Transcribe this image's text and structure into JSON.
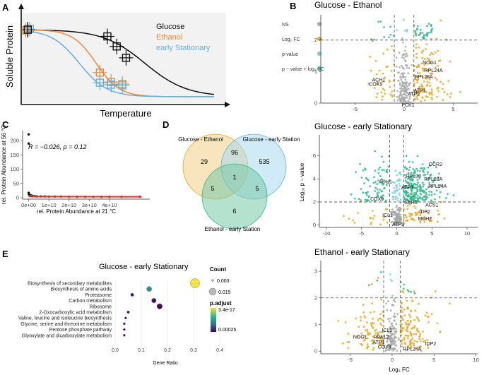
{
  "colors": {
    "glucose": "#111111",
    "ethanol": "#e88a3a",
    "stationary": "#6aaed6",
    "ns": "#a8a8a8",
    "log2fc": "#e3a72a",
    "pvalue": "#76cde0",
    "both": "#35b58e",
    "venn_glucose_ethanol": "#f3cf86",
    "venn_glucose_stationary": "#a9d8ef",
    "venn_ethanol_stationary": "#79c8a8",
    "regression": "#c0392b",
    "panel_bg": "#f2f2f2"
  },
  "panels": {
    "A": "A",
    "B": "B",
    "C": "C",
    "D": "D",
    "E": "E"
  },
  "chart_data": [
    {
      "id": "A",
      "type": "line",
      "xlabel": "Temperature",
      "ylabel": "Soluble Protein",
      "x": [
        0,
        1,
        2,
        3,
        4,
        5,
        6,
        7,
        8,
        9,
        10
      ],
      "series": [
        {
          "name": "Glucose",
          "color": "glucose",
          "values": [
            1.0,
            0.99,
            0.97,
            0.93,
            0.85,
            0.73,
            0.57,
            0.38,
            0.2,
            0.08,
            0.02
          ]
        },
        {
          "name": "Ethanol",
          "color": "ethanol",
          "values": [
            1.0,
            0.98,
            0.92,
            0.7,
            0.3,
            0.1,
            0.04,
            0.02,
            0.01,
            0.0,
            0.0
          ]
        },
        {
          "name": "early Stationary",
          "color": "stationary",
          "values": [
            1.0,
            0.93,
            0.7,
            0.35,
            0.12,
            0.05,
            0.03,
            0.02,
            0.01,
            0.0,
            0.0
          ]
        }
      ],
      "points": [
        {
          "series": "Glucose",
          "x": 0.05,
          "y": 1.0
        },
        {
          "series": "Glucose",
          "x": 4.3,
          "y": 0.9
        },
        {
          "series": "Glucose",
          "x": 4.8,
          "y": 0.75
        },
        {
          "series": "Glucose",
          "x": 5.3,
          "y": 0.58
        },
        {
          "series": "Ethanol",
          "x": 3.9,
          "y": 0.36
        },
        {
          "series": "Ethanol",
          "x": 4.5,
          "y": 0.22
        },
        {
          "series": "Ethanol",
          "x": 5.1,
          "y": 0.19
        },
        {
          "series": "early Stationary",
          "x": 3.9,
          "y": 0.21
        },
        {
          "series": "early Stationary",
          "x": 4.5,
          "y": 0.18
        },
        {
          "series": "early Stationary",
          "x": 5.1,
          "y": 0.17
        }
      ]
    },
    {
      "id": "B1",
      "type": "scatter",
      "title": "Glucose - Ethanol",
      "xlabel": "",
      "ylabel": "",
      "xlim": [
        -8.5,
        7.5
      ],
      "ylim": [
        0,
        2.8
      ],
      "xticks": [
        -5,
        0,
        5
      ],
      "yticks": [
        0,
        1,
        2
      ],
      "fc_cutoff": 1,
      "p_cutoff": 2,
      "legend": [
        {
          "label": "NS",
          "color": "ns"
        },
        {
          "label": "Log₂ FC",
          "color": "log2fc"
        },
        {
          "label": "p-value",
          "color": "pvalue"
        },
        {
          "label": "p − value + log₂ FC",
          "color": "both"
        }
      ],
      "labels": [
        {
          "text": "NOG1",
          "x": 2.6,
          "y": 1.3
        },
        {
          "text": "RPL24A",
          "x": 3.0,
          "y": 1.05
        },
        {
          "text": "RPL28A",
          "x": 2.0,
          "y": 0.85
        },
        {
          "text": "ACH1",
          "x": -2.6,
          "y": 0.75
        },
        {
          "text": "COX9",
          "x": -2.9,
          "y": 0.62
        },
        {
          "text": "ATP1",
          "x": 1.6,
          "y": 0.42
        },
        {
          "text": "ATP2",
          "x": 1.0,
          "y": 0.3
        },
        {
          "text": "PCK1",
          "x": 0.4,
          "y": -0.05
        }
      ]
    },
    {
      "id": "B2",
      "type": "scatter",
      "title": "Glucose - early Stationary",
      "xlabel": "",
      "ylabel": "Log₁₀ p − value",
      "xlim": [
        -11,
        11.5
      ],
      "ylim": [
        -0.2,
        7.8
      ],
      "xticks": [
        -10,
        -5,
        0,
        5,
        10
      ],
      "yticks": [
        0,
        2,
        4,
        6
      ],
      "fc_cutoff": 1,
      "p_cutoff": 2,
      "labels": [
        {
          "text": "OCR2",
          "x": 5.5,
          "y": 5.3
        },
        {
          "text": "RPL30",
          "x": 2.4,
          "y": 4.3
        },
        {
          "text": "RPL28A",
          "x": 5.2,
          "y": 4.0
        },
        {
          "text": "ADH1",
          "x": -1.6,
          "y": 3.8
        },
        {
          "text": "RPL24A",
          "x": 5.8,
          "y": 3.4
        },
        {
          "text": "ATP3",
          "x": 1.5,
          "y": 3.3
        },
        {
          "text": "COX9",
          "x": -2.8,
          "y": 2.3
        },
        {
          "text": "SDH1",
          "x": 2.0,
          "y": 2.0
        },
        {
          "text": "ACS1",
          "x": 5.0,
          "y": 1.8
        },
        {
          "text": "IDP2",
          "x": 4.0,
          "y": 1.2
        },
        {
          "text": "ICL1",
          "x": -1.3,
          "y": 0.9
        },
        {
          "text": "MDH2",
          "x": 4.0,
          "y": 0.6
        },
        {
          "text": "ATP2",
          "x": 0.2,
          "y": 0.1
        }
      ]
    },
    {
      "id": "B3",
      "type": "scatter",
      "title": "Ethanol - early Stationary",
      "xlabel": "Log₂ FC",
      "ylabel": "",
      "xlim": [
        -8.5,
        10.2
      ],
      "ylim": [
        -0.1,
        3.4
      ],
      "xticks": [
        -5,
        0,
        5,
        10
      ],
      "yticks": [
        0,
        1,
        2,
        3
      ],
      "fc_cutoff": 1,
      "p_cutoff": 2,
      "labels": [
        {
          "text": "ICL1",
          "x": -0.6,
          "y": 0.8
        },
        {
          "text": "NOG1",
          "x": -3.8,
          "y": 0.55
        },
        {
          "text": "RPA12",
          "x": -1.3,
          "y": 0.55
        },
        {
          "text": "ATP1",
          "x": -1.6,
          "y": 0.35
        },
        {
          "text": "IDP2",
          "x": 4.6,
          "y": 0.3
        },
        {
          "text": "COX9",
          "x": -0.9,
          "y": 0.18
        },
        {
          "text": "RPL24A",
          "x": 2.4,
          "y": 0.1
        }
      ]
    },
    {
      "id": "C",
      "type": "scatter",
      "annotation": "R = −0.026, ρ = 0.12",
      "xlabel": "rel. Protein Abundance at 21 °C",
      "ylabel": "rel. Protein Abundance at 56 °C",
      "xlim": [
        -3000000000.0,
        60000000000.0
      ],
      "ylim": [
        -5,
        235
      ],
      "xticks": [
        0,
        10000000000.0,
        20000000000.0,
        30000000000.0,
        40000000000.0
      ],
      "xtick_labels": [
        "0e+00",
        "1e+10",
        "2e+10",
        "3e+10",
        "4e+10"
      ],
      "yticks": [
        0,
        50,
        100,
        150,
        200
      ],
      "points": [
        {
          "x": 0,
          "y": 222
        },
        {
          "x": 0,
          "y": 190
        },
        {
          "x": 0,
          "y": 17
        },
        {
          "x": 100000000.0,
          "y": 15
        },
        {
          "x": 200000000.0,
          "y": 12
        },
        {
          "x": 300000000.0,
          "y": 10
        },
        {
          "x": 500000000.0,
          "y": 9
        },
        {
          "x": 700000000.0,
          "y": 8
        },
        {
          "x": 1000000000.0,
          "y": 8
        },
        {
          "x": 1500000000.0,
          "y": 7
        },
        {
          "x": 2000000000.0,
          "y": 6
        },
        {
          "x": 3000000000.0,
          "y": 6
        },
        {
          "x": 4000000000.0,
          "y": 5
        },
        {
          "x": 6000000000.0,
          "y": 5
        },
        {
          "x": 8000000000.0,
          "y": 5
        },
        {
          "x": 10000000000.0,
          "y": 4
        },
        {
          "x": 13000000000.0,
          "y": 4
        },
        {
          "x": 16000000000.0,
          "y": 4
        },
        {
          "x": 20000000000.0,
          "y": 3
        },
        {
          "x": 24000000000.0,
          "y": 3
        },
        {
          "x": 28000000000.0,
          "y": 3
        },
        {
          "x": 32000000000.0,
          "y": 3
        },
        {
          "x": 36000000000.0,
          "y": 3
        },
        {
          "x": 40000000000.0,
          "y": 3
        },
        {
          "x": 46000000000.0,
          "y": 3
        },
        {
          "x": 55000000000.0,
          "y": 4
        }
      ],
      "regression": {
        "x": [
          0,
          56000000000.0
        ],
        "y": [
          4,
          3
        ]
      }
    },
    {
      "id": "D",
      "type": "venn",
      "sets": [
        "Glucose - Ethanol",
        "Glucose - early Station",
        "Ethanol - early Station"
      ],
      "regions": [
        {
          "sets": [
            "Glucose - Ethanol"
          ],
          "count": 29
        },
        {
          "sets": [
            "Glucose - early Station"
          ],
          "count": 535
        },
        {
          "sets": [
            "Ethanol - early Station"
          ],
          "count": 6
        },
        {
          "sets": [
            "Glucose - Ethanol",
            "Glucose - early Station"
          ],
          "count": 96
        },
        {
          "sets": [
            "Glucose - Ethanol",
            "Ethanol - early Station"
          ],
          "count": 5
        },
        {
          "sets": [
            "Glucose - early Station",
            "Ethanol - early Station"
          ],
          "count": 5
        },
        {
          "sets": [
            "Glucose - Ethanol",
            "Glucose - early Station",
            "Ethanol - early Station"
          ],
          "count": 1
        }
      ]
    },
    {
      "id": "E",
      "type": "scatter",
      "title": "Glucose - early Stationary",
      "xlabel": "Gene Ratio",
      "xlim": [
        0,
        0.4
      ],
      "xticks": [
        0.0,
        0.1,
        0.2,
        0.3,
        0.4
      ],
      "categories": [
        "Biosynthesis of secondary metabolites",
        "Biosynthesis of amino acids",
        "Proteasome",
        "Carbon metabolism",
        "Ribosome",
        "2-Oxocarboxylic acid metabolism",
        "Valine, leucine and isoleucine biosynthesis",
        "Glycine, serine and threonine metabolism",
        "Pentose phosphate pathway",
        "Glyoxylate and dicarboxylate metabolism"
      ],
      "gene_ratio": [
        0.305,
        0.13,
        0.065,
        0.148,
        0.17,
        0.05,
        0.04,
        0.035,
        0.035,
        0.035
      ],
      "count": [
        0.018,
        0.009,
        0.005,
        0.008,
        0.01,
        0.004,
        0.003,
        0.003,
        0.003,
        0.003
      ],
      "p_adjust": [
        3.4e-17,
        1e-10,
        5e-05,
        8e-05,
        9e-05,
        0.0001,
        0.0002,
        0.00025,
        0.00025,
        0.00025
      ],
      "legend_count_title": "Count",
      "legend_count_labels": [
        "0.003",
        "0.015"
      ],
      "legend_p_title": "p.adjust",
      "legend_p_labels": [
        "3.4e-17",
        "0.00025"
      ]
    }
  ]
}
